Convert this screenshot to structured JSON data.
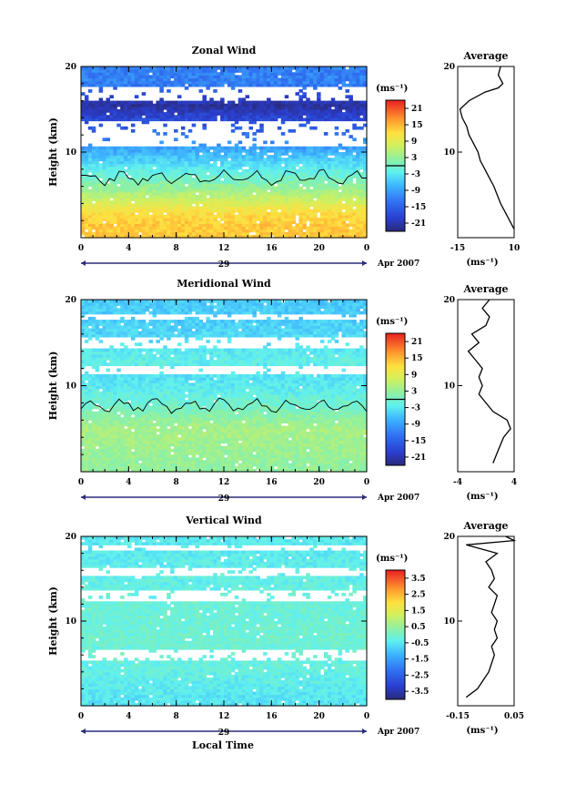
{
  "figure": {
    "x_axis_label": "Local Time",
    "date_label": "Apr 2007",
    "day_label": "29",
    "y_axis_label": "Height (km)",
    "colorbar_unit": "(ms⁻¹)",
    "average_title": "Average",
    "average_xlabel": "(ms⁻¹)"
  },
  "chart_data": [
    {
      "type": "heatmap",
      "title": "Zonal Wind",
      "xlabel": "Local Time",
      "ylabel": "Height (km)",
      "xlim": [
        0,
        24
      ],
      "ylim": [
        0,
        20
      ],
      "x_ticks": [
        "0",
        "4",
        "8",
        "12",
        "16",
        "20",
        "0"
      ],
      "y_ticks": [
        "10",
        "20"
      ],
      "colorbar": {
        "unit": "(ms⁻¹)",
        "ticks": [
          "21",
          "15",
          "9",
          "3",
          "-3",
          "-9",
          "-15",
          "-21"
        ],
        "range": [
          -24,
          24
        ]
      },
      "contour_level": 0,
      "height_profile": [
        {
          "h": 1.5,
          "v": 15
        },
        {
          "h": 3,
          "v": 13
        },
        {
          "h": 5,
          "v": 6
        },
        {
          "h": 7,
          "v": 0
        },
        {
          "h": 8.5,
          "v": -4
        },
        {
          "h": 10,
          "v": -8
        },
        {
          "h": 11.5,
          "v": -12
        },
        {
          "h": 13,
          "v": -16
        },
        {
          "h": 14.5,
          "v": -19
        },
        {
          "h": 15.5,
          "v": -22
        },
        {
          "h": 18,
          "v": -12
        }
      ],
      "gaps": [
        [
          16,
          17.6
        ],
        [
          10.8,
          13.6
        ]
      ],
      "average": {
        "title": "Average",
        "xlabel": "(ms⁻¹)",
        "xlim": [
          -15,
          10
        ],
        "x_ticks": [
          "-15",
          "10"
        ],
        "y_ticks": [
          "10",
          "20"
        ],
        "profile": [
          {
            "h": 1,
            "v": 10
          },
          {
            "h": 2,
            "v": 8
          },
          {
            "h": 3,
            "v": 6
          },
          {
            "h": 4,
            "v": 4
          },
          {
            "h": 5,
            "v": 2.5
          },
          {
            "h": 6,
            "v": 1
          },
          {
            "h": 7,
            "v": -1
          },
          {
            "h": 8,
            "v": -3
          },
          {
            "h": 9,
            "v": -5
          },
          {
            "h": 10,
            "v": -6
          },
          {
            "h": 11,
            "v": -8
          },
          {
            "h": 12,
            "v": -10
          },
          {
            "h": 13,
            "v": -11
          },
          {
            "h": 14,
            "v": -13
          },
          {
            "h": 15,
            "v": -14
          },
          {
            "h": 16,
            "v": -10
          },
          {
            "h": 17,
            "v": -3
          },
          {
            "h": 17.5,
            "v": 3
          },
          {
            "h": 18,
            "v": 5
          },
          {
            "h": 19,
            "v": 3
          },
          {
            "h": 20,
            "v": 4
          }
        ]
      }
    },
    {
      "type": "heatmap",
      "title": "Meridional Wind",
      "xlabel": "Local Time",
      "ylabel": "Height (km)",
      "xlim": [
        0,
        24
      ],
      "ylim": [
        0,
        20
      ],
      "x_ticks": [
        "0",
        "4",
        "8",
        "12",
        "16",
        "20",
        "0"
      ],
      "y_ticks": [
        "10",
        "20"
      ],
      "colorbar": {
        "unit": "(ms⁻¹)",
        "ticks": [
          "21",
          "15",
          "9",
          "3",
          "-3",
          "-9",
          "-15",
          "-21"
        ],
        "range": [
          -24,
          24
        ]
      },
      "contour_level": 0,
      "height_profile": [
        {
          "h": 1,
          "v": 3
        },
        {
          "h": 3,
          "v": 4
        },
        {
          "h": 5,
          "v": 5
        },
        {
          "h": 7,
          "v": 1
        },
        {
          "h": 9,
          "v": -2
        },
        {
          "h": 11,
          "v": -4
        },
        {
          "h": 13,
          "v": -2
        },
        {
          "h": 16,
          "v": -5
        },
        {
          "h": 18.5,
          "v": -6
        }
      ],
      "gaps": [
        [
          17.6,
          18.2
        ],
        [
          14.2,
          15.6
        ],
        [
          11.2,
          12.3
        ]
      ],
      "average": {
        "title": "Average",
        "xlabel": "(ms⁻¹)",
        "xlim": [
          -4,
          4
        ],
        "x_ticks": [
          "-4",
          "4"
        ],
        "y_ticks": [
          "10",
          "20"
        ],
        "profile": [
          {
            "h": 1,
            "v": 1
          },
          {
            "h": 2,
            "v": 1.5
          },
          {
            "h": 3,
            "v": 2
          },
          {
            "h": 4,
            "v": 2.5
          },
          {
            "h": 5,
            "v": 3.5
          },
          {
            "h": 6,
            "v": 3
          },
          {
            "h": 7,
            "v": 1
          },
          {
            "h": 8,
            "v": 0
          },
          {
            "h": 9,
            "v": -1
          },
          {
            "h": 10,
            "v": -0.5
          },
          {
            "h": 11,
            "v": -1
          },
          {
            "h": 12,
            "v": -0.5
          },
          {
            "h": 13,
            "v": -1.5
          },
          {
            "h": 14,
            "v": -2.5
          },
          {
            "h": 15,
            "v": -1
          },
          {
            "h": 16,
            "v": -2
          },
          {
            "h": 17,
            "v": 0
          },
          {
            "h": 18,
            "v": 0.5
          },
          {
            "h": 19,
            "v": -0.5
          },
          {
            "h": 20,
            "v": 0.5
          }
        ]
      }
    },
    {
      "type": "heatmap",
      "title": "Vertical Wind",
      "xlabel": "Local Time",
      "ylabel": "Height (km)",
      "xlim": [
        0,
        24
      ],
      "ylim": [
        0,
        20
      ],
      "x_ticks": [
        "0",
        "4",
        "8",
        "12",
        "16",
        "20",
        "0"
      ],
      "y_ticks": [
        "10",
        "20"
      ],
      "colorbar": {
        "unit": "(ms⁻¹)",
        "ticks": [
          "3.5",
          "2.5",
          "1.5",
          "0.5",
          "-0.5",
          "-1.5",
          "-2.5",
          "-3.5"
        ],
        "range": [
          -4,
          4
        ]
      },
      "height_profile": [
        {
          "h": 1,
          "v": -0.6
        },
        {
          "h": 4,
          "v": -0.3
        },
        {
          "h": 8,
          "v": -0.1
        },
        {
          "h": 12,
          "v": -0.2
        },
        {
          "h": 16,
          "v": -0.4
        },
        {
          "h": 19,
          "v": -0.5
        }
      ],
      "gaps": [
        [
          15.5,
          16.3
        ],
        [
          12.2,
          13.5
        ],
        [
          5.5,
          6.5
        ],
        [
          18.5,
          19.0
        ]
      ],
      "average": {
        "title": "Average",
        "xlabel": "(ms⁻¹)",
        "xlim": [
          -0.15,
          0.05
        ],
        "x_ticks": [
          "-0.15",
          "0.05"
        ],
        "y_ticks": [
          "10",
          "20"
        ],
        "profile": [
          {
            "h": 1,
            "v": -0.12
          },
          {
            "h": 2,
            "v": -0.08
          },
          {
            "h": 3,
            "v": -0.06
          },
          {
            "h": 4,
            "v": -0.04
          },
          {
            "h": 5,
            "v": -0.03
          },
          {
            "h": 6,
            "v": -0.02
          },
          {
            "h": 7,
            "v": -0.03
          },
          {
            "h": 8,
            "v": -0.01
          },
          {
            "h": 9,
            "v": -0.02
          },
          {
            "h": 10,
            "v": -0.01
          },
          {
            "h": 11,
            "v": -0.03
          },
          {
            "h": 12,
            "v": -0.02
          },
          {
            "h": 13,
            "v": -0.01
          },
          {
            "h": 14,
            "v": -0.04
          },
          {
            "h": 15,
            "v": -0.02
          },
          {
            "h": 16,
            "v": -0.03
          },
          {
            "h": 17,
            "v": -0.05
          },
          {
            "h": 18,
            "v": -0.01
          },
          {
            "h": 19,
            "v": -0.12
          },
          {
            "h": 19.5,
            "v": 0.05
          },
          {
            "h": 20,
            "v": 0.02
          }
        ]
      }
    }
  ]
}
